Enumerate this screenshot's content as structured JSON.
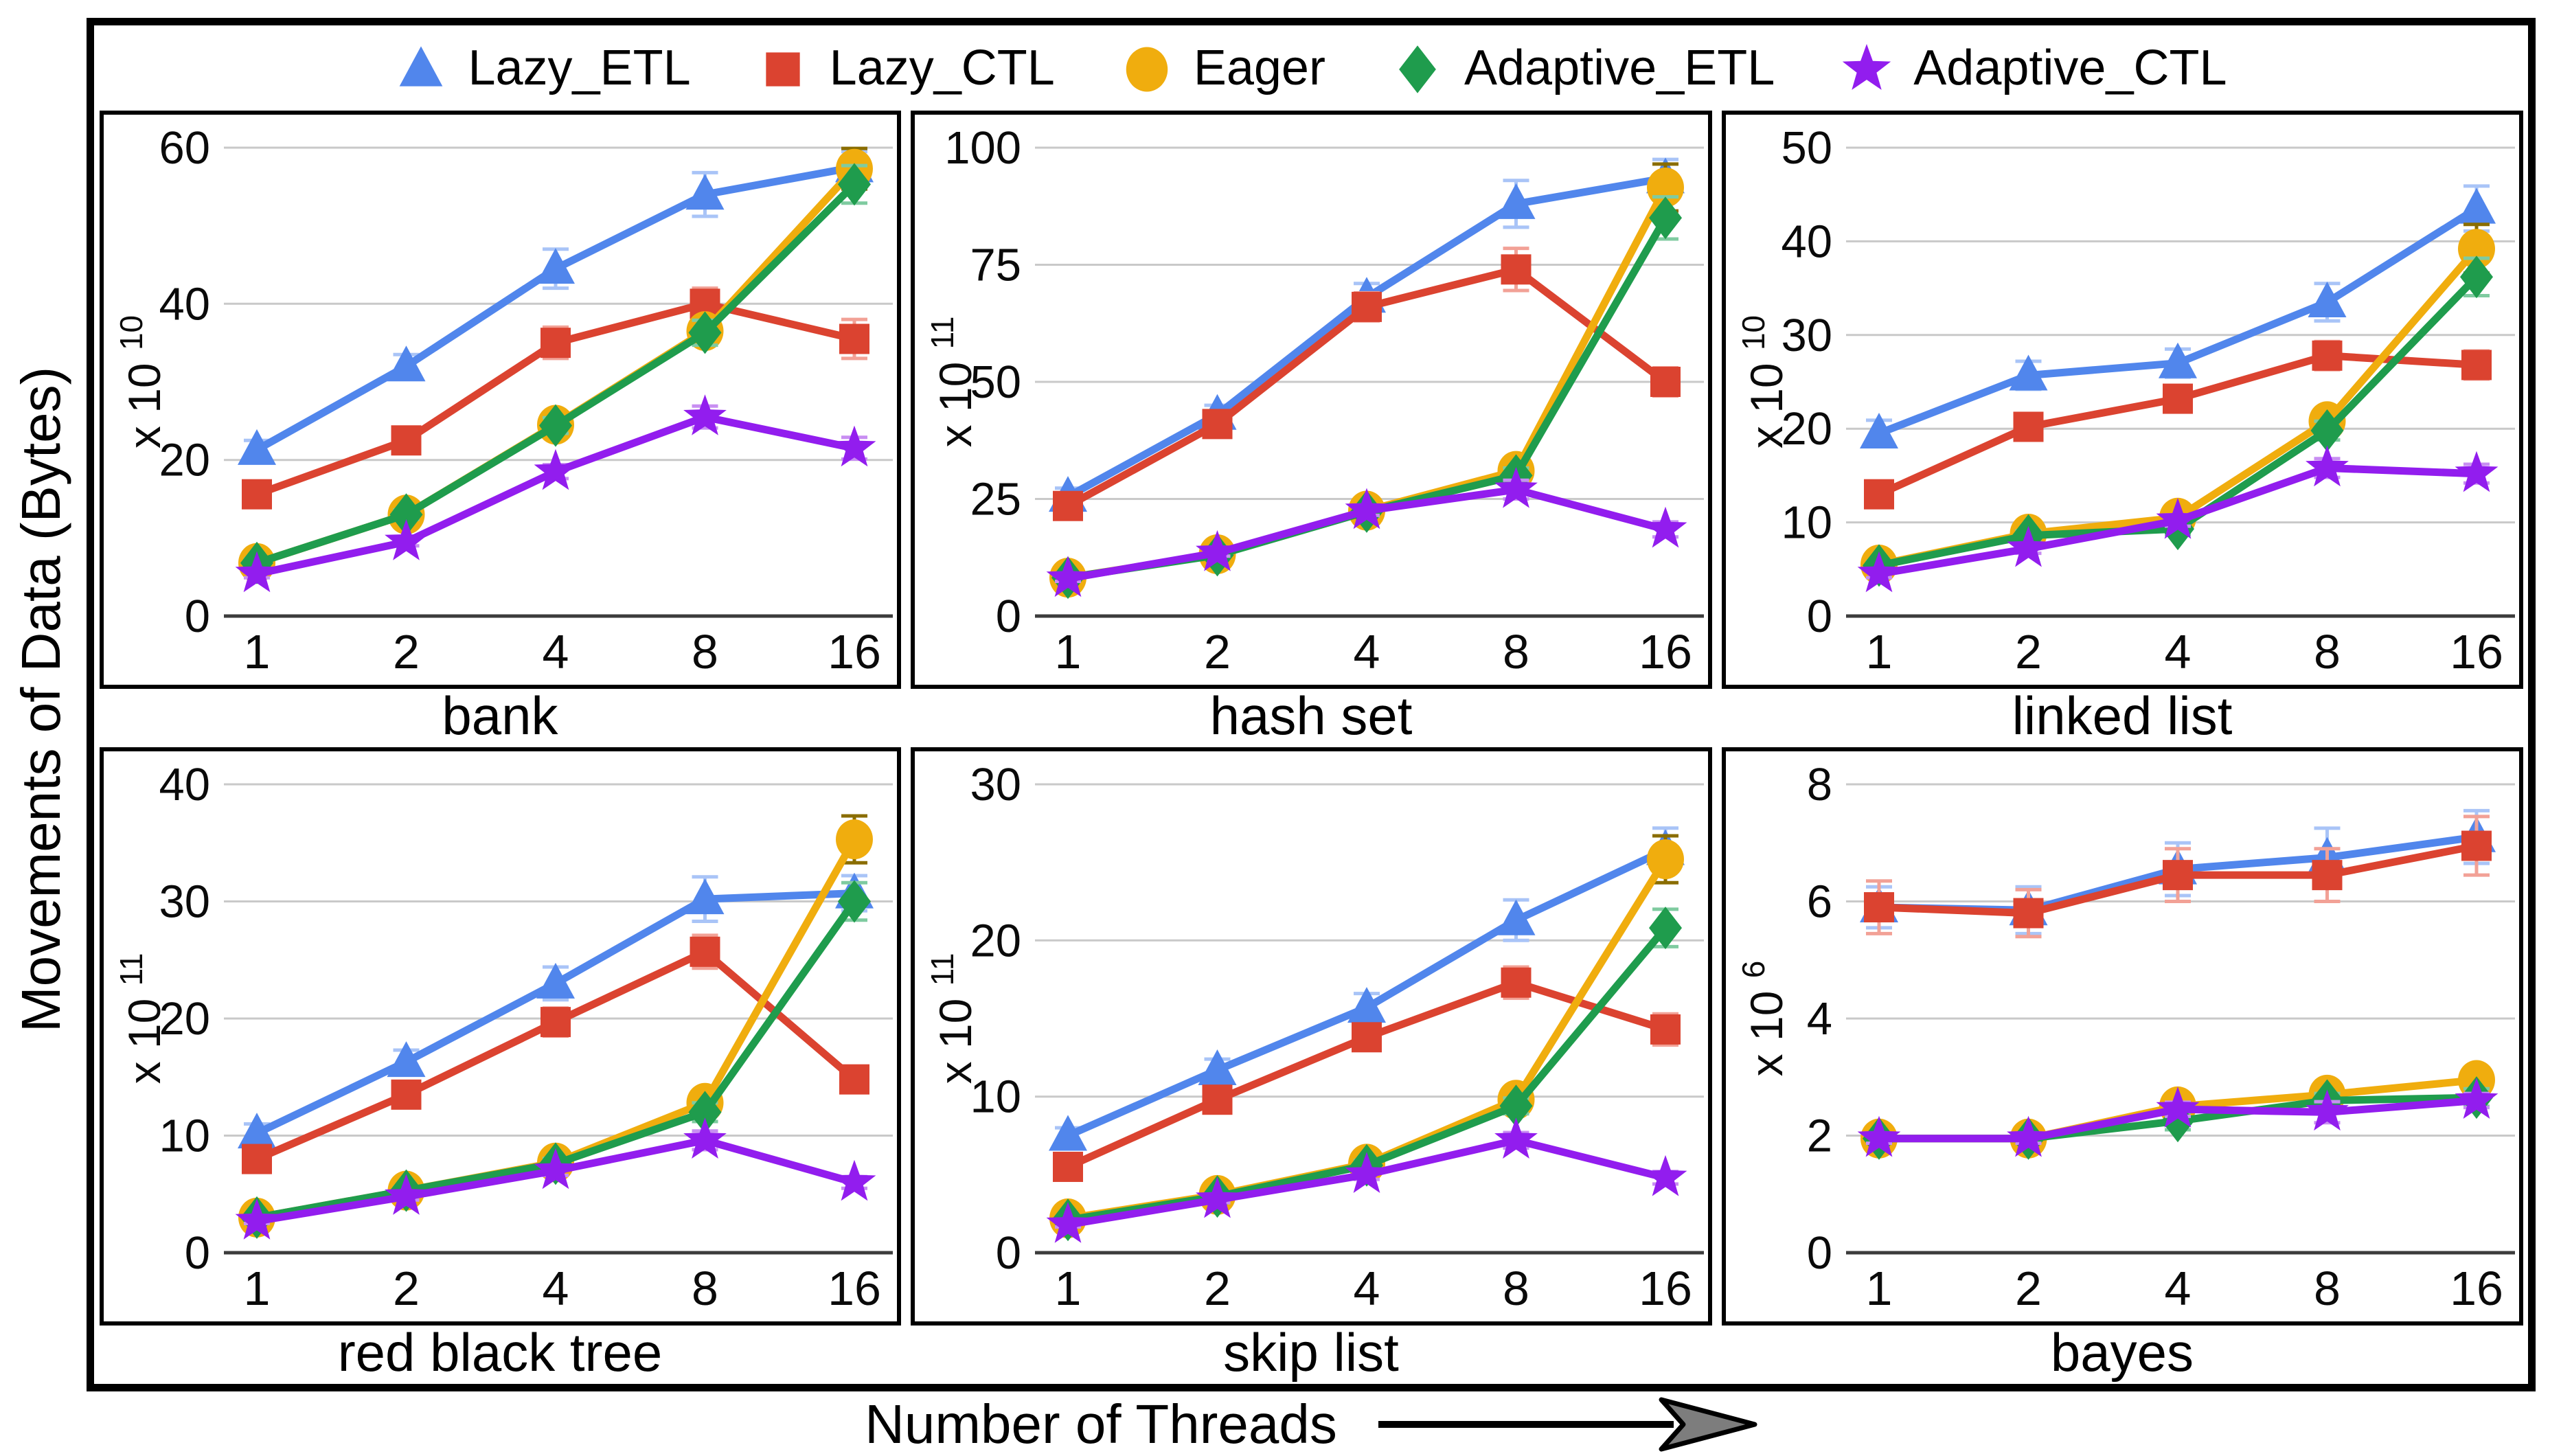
{
  "figure": {
    "y_axis_label": "Movements of Data (Bytes)",
    "x_axis_label": "Number of Threads",
    "x_ticks": [
      "1",
      "2",
      "4",
      "8",
      "16"
    ]
  },
  "styles": {
    "gridline_color": "#c9c9c9",
    "baseline_color": "#3c3c3c",
    "border_color": "#000000",
    "arrowhead_fill": "#7d7d7d"
  },
  "legend": [
    {
      "name": "Lazy_ETL",
      "marker": "triangle-icon",
      "color": "#5186EC",
      "error_color": "#a9c4f7"
    },
    {
      "name": "Lazy_CTL",
      "marker": "square-icon",
      "color": "#DB4330",
      "error_color": "#f2a196"
    },
    {
      "name": "Eager",
      "marker": "circle-icon",
      "color": "#F0AD0E",
      "error_color": "#8a6d00"
    },
    {
      "name": "Adaptive_ETL",
      "marker": "diamond-icon",
      "color": "#1F9C4D",
      "error_color": "#7fcba0"
    },
    {
      "name": "Adaptive_CTL",
      "marker": "star-icon",
      "color": "#921DEE",
      "error_color": "#c88ef2"
    }
  ],
  "chart_data": [
    {
      "type": "line",
      "title": "bank",
      "scale_label": "x 10",
      "exponent": "10",
      "x": [
        1,
        2,
        4,
        8,
        16
      ],
      "x_tick_labels": [
        "1",
        "2",
        "4",
        "8",
        "16"
      ],
      "ylim": [
        0,
        60
      ],
      "yticks": [
        0,
        20,
        40,
        60
      ],
      "grid": true,
      "series": [
        {
          "name": "Lazy_ETL",
          "values": [
            21.3,
            32.0,
            44.5,
            54.0,
            57.5
          ],
          "err": [
            1.2,
            1.5,
            2.5,
            2.8,
            2.0
          ]
        },
        {
          "name": "Lazy_CTL",
          "values": [
            15.6,
            22.5,
            35.0,
            40.0,
            35.5
          ],
          "err": [
            1.0,
            1.2,
            2.0,
            2.0,
            2.5
          ]
        },
        {
          "name": "Eager",
          "values": [
            6.8,
            13.0,
            24.5,
            36.5,
            57.3
          ],
          "err": [
            0.5,
            0.6,
            1.0,
            1.6,
            2.6
          ]
        },
        {
          "name": "Adaptive_ETL",
          "values": [
            6.8,
            13.0,
            24.4,
            36.3,
            55.3
          ],
          "err": [
            0.5,
            0.6,
            1.0,
            1.6,
            2.4
          ]
        },
        {
          "name": "Adaptive_CTL",
          "values": [
            5.4,
            9.5,
            18.5,
            25.5,
            21.5
          ],
          "err": [
            0.5,
            0.5,
            0.9,
            1.4,
            1.4
          ]
        }
      ]
    },
    {
      "type": "line",
      "title": "hash set",
      "scale_label": "x 10",
      "exponent": "11",
      "x": [
        1,
        2,
        4,
        8,
        16
      ],
      "x_tick_labels": [
        "1",
        "2",
        "4",
        "8",
        "16"
      ],
      "ylim": [
        0,
        100
      ],
      "yticks": [
        0,
        25,
        50,
        75,
        100
      ],
      "grid": true,
      "series": [
        {
          "name": "Lazy_ETL",
          "values": [
            25.5,
            43.0,
            68.0,
            88.0,
            93.5
          ],
          "err": [
            1.8,
            2.0,
            3.0,
            5.0,
            4.0
          ]
        },
        {
          "name": "Lazy_CTL",
          "values": [
            23.5,
            41.0,
            66.0,
            74.0,
            50.0
          ],
          "err": [
            1.5,
            1.6,
            3.0,
            4.5,
            3.0
          ]
        },
        {
          "name": "Eager",
          "values": [
            8.2,
            13.2,
            22.5,
            31.0,
            91.5
          ],
          "err": [
            0.6,
            0.7,
            1.0,
            1.6,
            5.0
          ]
        },
        {
          "name": "Adaptive_ETL",
          "values": [
            8.2,
            13.0,
            22.3,
            30.0,
            85.0
          ],
          "err": [
            0.6,
            0.7,
            1.0,
            1.6,
            4.5
          ]
        },
        {
          "name": "Adaptive_CTL",
          "values": [
            8.0,
            13.5,
            22.5,
            27.0,
            18.5
          ],
          "err": [
            0.6,
            0.7,
            1.0,
            2.0,
            1.6
          ]
        }
      ]
    },
    {
      "type": "line",
      "title": "linked list",
      "scale_label": "x 10",
      "exponent": "10",
      "x": [
        1,
        2,
        4,
        8,
        16
      ],
      "x_tick_labels": [
        "1",
        "2",
        "4",
        "8",
        "16"
      ],
      "ylim": [
        0,
        50
      ],
      "yticks": [
        0,
        10,
        20,
        30,
        40,
        50
      ],
      "grid": true,
      "series": [
        {
          "name": "Lazy_ETL",
          "values": [
            19.5,
            25.7,
            27.0,
            33.5,
            43.5
          ],
          "err": [
            1.4,
            1.5,
            1.5,
            2.0,
            2.4
          ]
        },
        {
          "name": "Lazy_CTL",
          "values": [
            13.0,
            20.2,
            23.2,
            27.8,
            26.8
          ],
          "err": [
            0.9,
            1.0,
            1.4,
            1.5,
            1.5
          ]
        },
        {
          "name": "Eager",
          "values": [
            5.5,
            8.8,
            10.5,
            20.8,
            39.2
          ],
          "err": [
            0.4,
            0.5,
            0.6,
            1.0,
            2.6
          ]
        },
        {
          "name": "Adaptive_ETL",
          "values": [
            5.4,
            8.6,
            9.3,
            19.8,
            36.2
          ],
          "err": [
            0.4,
            0.5,
            0.6,
            1.0,
            2.0
          ]
        },
        {
          "name": "Adaptive_CTL",
          "values": [
            4.5,
            7.2,
            10.2,
            15.8,
            15.2
          ],
          "err": [
            0.4,
            0.5,
            0.6,
            1.0,
            1.0
          ]
        }
      ]
    },
    {
      "type": "line",
      "title": "red black tree",
      "scale_label": "x 10",
      "exponent": "11",
      "x": [
        1,
        2,
        4,
        8,
        16
      ],
      "x_tick_labels": [
        "1",
        "2",
        "4",
        "8",
        "16"
      ],
      "ylim": [
        0,
        40
      ],
      "yticks": [
        0,
        10,
        20,
        30,
        40
      ],
      "grid": true,
      "series": [
        {
          "name": "Lazy_ETL",
          "values": [
            10.2,
            16.3,
            23.0,
            30.2,
            30.7
          ],
          "err": [
            0.8,
            1.0,
            1.4,
            1.9,
            1.5
          ]
        },
        {
          "name": "Lazy_CTL",
          "values": [
            8.0,
            13.5,
            19.7,
            25.7,
            14.8
          ],
          "err": [
            0.6,
            0.8,
            1.2,
            1.4,
            1.0
          ]
        },
        {
          "name": "Eager",
          "values": [
            3.0,
            5.3,
            7.7,
            12.8,
            35.3
          ],
          "err": [
            0.25,
            0.3,
            0.45,
            0.8,
            2.0
          ]
        },
        {
          "name": "Adaptive_ETL",
          "values": [
            3.0,
            5.3,
            7.6,
            12.0,
            30.0
          ],
          "err": [
            0.25,
            0.3,
            0.45,
            0.8,
            1.6
          ]
        },
        {
          "name": "Adaptive_CTL",
          "values": [
            2.7,
            4.8,
            7.0,
            9.6,
            6.0
          ],
          "err": [
            0.2,
            0.3,
            0.4,
            0.8,
            0.5
          ]
        }
      ]
    },
    {
      "type": "line",
      "title": "skip list",
      "scale_label": "x 10",
      "exponent": "11",
      "x": [
        1,
        2,
        4,
        8,
        16
      ],
      "x_tick_labels": [
        "1",
        "2",
        "4",
        "8",
        "16"
      ],
      "ylim": [
        0,
        30
      ],
      "yticks": [
        0,
        10,
        20,
        30
      ],
      "grid": true,
      "series": [
        {
          "name": "Lazy_ETL",
          "values": [
            7.5,
            11.7,
            15.7,
            21.3,
            25.8
          ],
          "err": [
            0.5,
            0.7,
            0.9,
            1.3,
            1.4
          ]
        },
        {
          "name": "Lazy_CTL",
          "values": [
            5.5,
            9.8,
            13.8,
            17.3,
            14.3
          ],
          "err": [
            0.4,
            0.5,
            0.8,
            1.0,
            1.0
          ]
        },
        {
          "name": "Eager",
          "values": [
            2.2,
            3.7,
            5.7,
            9.8,
            25.2
          ],
          "err": [
            0.2,
            0.2,
            0.3,
            0.5,
            1.5
          ]
        },
        {
          "name": "Adaptive_ETL",
          "values": [
            2.1,
            3.6,
            5.6,
            9.4,
            20.8
          ],
          "err": [
            0.2,
            0.2,
            0.3,
            0.5,
            1.2
          ]
        },
        {
          "name": "Adaptive_CTL",
          "values": [
            1.8,
            3.4,
            5.0,
            7.2,
            4.8
          ],
          "err": [
            0.15,
            0.2,
            0.3,
            0.5,
            0.4
          ]
        }
      ]
    },
    {
      "type": "line",
      "title": "bayes",
      "scale_label": "x 10",
      "exponent": "6",
      "x": [
        1,
        2,
        4,
        8,
        16
      ],
      "x_tick_labels": [
        "1",
        "2",
        "4",
        "8",
        "16"
      ],
      "ylim": [
        0,
        8
      ],
      "yticks": [
        0,
        2,
        4,
        6,
        8
      ],
      "grid": true,
      "series": [
        {
          "name": "Lazy_ETL",
          "values": [
            5.9,
            5.85,
            6.55,
            6.75,
            7.1
          ],
          "err": [
            0.35,
            0.4,
            0.45,
            0.5,
            0.45
          ]
        },
        {
          "name": "Lazy_CTL",
          "values": [
            5.9,
            5.8,
            6.45,
            6.45,
            6.95
          ],
          "err": [
            0.45,
            0.4,
            0.45,
            0.45,
            0.5
          ]
        },
        {
          "name": "Eager",
          "values": [
            1.95,
            1.95,
            2.5,
            2.7,
            2.95
          ],
          "err": [
            0.08,
            0.08,
            0.12,
            0.12,
            0.15
          ]
        },
        {
          "name": "Adaptive_ETL",
          "values": [
            1.95,
            1.95,
            2.25,
            2.6,
            2.65
          ],
          "err": [
            0.08,
            0.08,
            0.15,
            0.12,
            0.15
          ]
        },
        {
          "name": "Adaptive_CTL",
          "values": [
            1.95,
            1.95,
            2.45,
            2.4,
            2.6
          ],
          "err": [
            0.08,
            0.08,
            0.12,
            0.18,
            0.12
          ]
        }
      ]
    }
  ]
}
